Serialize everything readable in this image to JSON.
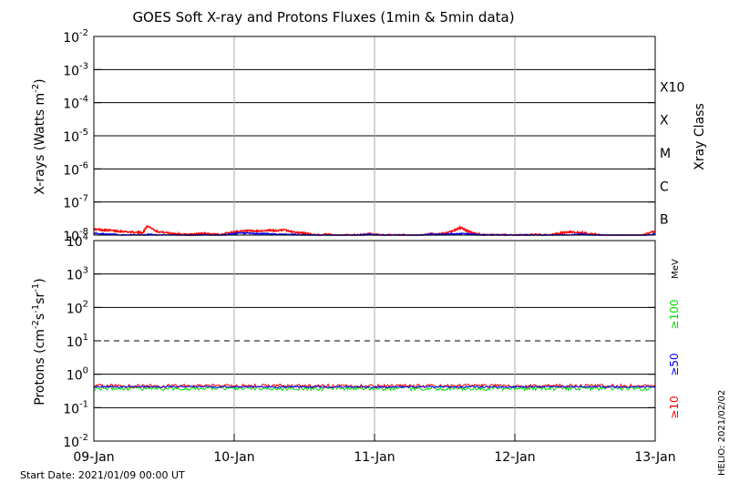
{
  "title": "GOES Soft X-ray and Protons Fluxes   (1min & 5min data)",
  "footer": {
    "start_date": "Start Date: 2021/01/09 00:00 UT",
    "credit": "HELIO: 2021/02/02"
  },
  "colors": {
    "xray_long": "#ff0000",
    "xray_short": "#0000ff",
    "proton_10": "#ff0000",
    "proton_50": "#0000ff",
    "proton_100": "#00dd00",
    "grid_horizontal": "#000000",
    "grid_vertical": "#aaaaaa"
  },
  "chart_data": [
    {
      "type": "line",
      "panel": "xrays",
      "title": "GOES Soft X-ray and Protons Fluxes   (1min & 5min data)",
      "ylabel": "X-rays (Watts m^-2)",
      "y_scale": "log",
      "ylim": [
        1e-08,
        0.01
      ],
      "y_ticks": [
        {
          "value": 1e-08,
          "base": "10",
          "exp": "-8"
        },
        {
          "value": 1e-07,
          "base": "10",
          "exp": "-7"
        },
        {
          "value": 1e-06,
          "base": "10",
          "exp": "-6"
        },
        {
          "value": 1e-05,
          "base": "10",
          "exp": "-5"
        },
        {
          "value": 0.0001,
          "base": "10",
          "exp": "-4"
        },
        {
          "value": 0.001,
          "base": "10",
          "exp": "-3"
        },
        {
          "value": 0.01,
          "base": "10",
          "exp": "-2"
        }
      ],
      "right_axis_title": "Xray Class",
      "class_labels": [
        {
          "label": "B",
          "value": 3e-08
        },
        {
          "label": "C",
          "value": 3e-07
        },
        {
          "label": "M",
          "value": 3e-06
        },
        {
          "label": "X",
          "value": 3e-05
        },
        {
          "label": "X10",
          "value": 0.0003
        }
      ],
      "grid": true,
      "series": [
        {
          "color": "#ff0000",
          "x": [
            0.0,
            0.05,
            0.1,
            0.15,
            0.2,
            0.25,
            0.3,
            0.35,
            0.38,
            0.45,
            0.5,
            0.55,
            0.6,
            0.65,
            0.7,
            0.75,
            0.8,
            0.85,
            0.9,
            0.95,
            1.0,
            1.05,
            1.1,
            1.15,
            1.2,
            1.25,
            1.3,
            1.35,
            1.4,
            1.45,
            1.5,
            1.55,
            1.6,
            1.65,
            1.7,
            1.75,
            1.8,
            1.85,
            1.9,
            1.95,
            2.0,
            2.05,
            2.1,
            2.15,
            2.2,
            2.25,
            2.3,
            2.35,
            2.4,
            2.45,
            2.5,
            2.55,
            2.6,
            2.62,
            2.65,
            2.7,
            2.75,
            2.8,
            2.85,
            2.9,
            2.95,
            3.0,
            3.05,
            3.1,
            3.15,
            3.2,
            3.25,
            3.3,
            3.35,
            3.4,
            3.45,
            3.5,
            3.55,
            3.6,
            3.65,
            3.7,
            3.75,
            3.8,
            3.85,
            3.9,
            3.95,
            4.0
          ],
          "values": [
            1.5e-08,
            1.45e-08,
            1.4e-08,
            1.35e-08,
            1.3e-08,
            1.25e-08,
            1.2e-08,
            1.2e-08,
            1.9e-08,
            1.3e-08,
            1.2e-08,
            1.15e-08,
            1.1e-08,
            1.05e-08,
            1.05e-08,
            1.1e-08,
            1.15e-08,
            1.05e-08,
            1.05e-08,
            1.15e-08,
            1.25e-08,
            1.3e-08,
            1.35e-08,
            1.3e-08,
            1.35e-08,
            1.4e-08,
            1.35e-08,
            1.45e-08,
            1.3e-08,
            1.2e-08,
            1.15e-08,
            1.05e-08,
            1e-08,
            1.05e-08,
            1e-08,
            9.5e-09,
            1e-08,
            1e-08,
            1e-08,
            1.1e-08,
            1.05e-08,
            1e-08,
            1e-08,
            1e-08,
            1e-08,
            9.5e-09,
            9.5e-09,
            1e-08,
            1.1e-08,
            1.05e-08,
            1.15e-08,
            1.3e-08,
            1.6e-08,
            1.65e-08,
            1.4e-08,
            1.15e-08,
            1.05e-08,
            1e-08,
            1e-08,
            1e-08,
            1e-08,
            1e-08,
            1e-08,
            1e-08,
            1.05e-08,
            1e-08,
            1e-08,
            1.1e-08,
            1.2e-08,
            1.25e-08,
            1.2e-08,
            1.15e-08,
            1.1e-08,
            1e-08,
            9.5e-09,
            9.5e-09,
            9.5e-09,
            9.5e-09,
            9.5e-09,
            9.5e-09,
            1.15e-08,
            1.3e-08
          ]
        },
        {
          "color": "#0000ff",
          "x": [
            0.0,
            0.05,
            0.1,
            0.15,
            0.2,
            0.25,
            0.3,
            0.35,
            0.4,
            0.45,
            0.5,
            0.55,
            0.6,
            0.65,
            0.7,
            0.75,
            0.8,
            0.85,
            0.9,
            0.95,
            1.0,
            1.05,
            1.1,
            1.15,
            1.2,
            1.25,
            1.3,
            1.35,
            1.4,
            1.45,
            1.5,
            1.55,
            1.6,
            1.65,
            1.7,
            1.75,
            1.8,
            1.85,
            1.9,
            1.95,
            2.0,
            2.05,
            2.1,
            2.15,
            2.2,
            2.25,
            2.3,
            2.35,
            2.4,
            2.45,
            2.5,
            2.55,
            2.6,
            2.65,
            2.7,
            2.75,
            2.8,
            2.85,
            2.9,
            2.95,
            3.0,
            3.05,
            3.1,
            3.15,
            3.2,
            3.25,
            3.3,
            3.35,
            3.4,
            3.45,
            3.5,
            3.55,
            3.6,
            3.65,
            3.7,
            3.75,
            3.8,
            3.85,
            3.9,
            3.95,
            4.0
          ],
          "values": [
            1.15e-08,
            1.1e-08,
            1.05e-08,
            1.05e-08,
            1e-08,
            1e-08,
            1e-08,
            1e-08,
            1.05e-08,
            1e-08,
            1e-08,
            1e-08,
            9.8e-09,
            9.8e-09,
            9.8e-09,
            1e-08,
            1.02e-08,
            9.8e-09,
            9.8e-09,
            1.05e-08,
            1.1e-08,
            1.15e-08,
            1.15e-08,
            1.1e-08,
            1.1e-08,
            1.1e-08,
            1.05e-08,
            1.05e-08,
            1.05e-08,
            1.02e-08,
            1e-08,
            1e-08,
            9.8e-09,
            9.8e-09,
            9.8e-09,
            9.8e-09,
            9.8e-09,
            1e-08,
            1e-08,
            1.05e-08,
            1e-08,
            1e-08,
            1e-08,
            1e-08,
            1e-08,
            9.8e-09,
            9.8e-09,
            1e-08,
            1.05e-08,
            1.05e-08,
            1.05e-08,
            1.1e-08,
            1.1e-08,
            1.1e-08,
            1.05e-08,
            1e-08,
            1e-08,
            1e-08,
            1e-08,
            1e-08,
            1e-08,
            1e-08,
            1e-08,
            1e-08,
            1e-08,
            1e-08,
            1e-08,
            1e-08,
            1e-08,
            1.05e-08,
            1.05e-08,
            1e-08,
            1e-08,
            9.8e-09,
            9.8e-09,
            9.8e-09,
            9.8e-09,
            9.8e-09,
            9.8e-09,
            1e-08,
            1.1e-08
          ]
        }
      ]
    },
    {
      "type": "line",
      "panel": "protons",
      "ylabel": "Protons (cm^-2 s^-1 sr^-1)",
      "y_scale": "log",
      "ylim": [
        0.01,
        10000.0
      ],
      "y_ticks": [
        {
          "value": 0.01,
          "base": "10",
          "exp": "-2"
        },
        {
          "value": 0.1,
          "base": "10",
          "exp": "-1"
        },
        {
          "value": 1.0,
          "base": "10",
          "exp": "0"
        },
        {
          "value": 10.0,
          "base": "10",
          "exp": "1"
        },
        {
          "value": 100.0,
          "base": "10",
          "exp": "2"
        },
        {
          "value": 1000.0,
          "base": "10",
          "exp": "3"
        },
        {
          "value": 10000.0,
          "base": "10",
          "exp": "4"
        }
      ],
      "threshold_line": {
        "value": 10,
        "style": "dashed"
      },
      "right_axis_unit": "MeV",
      "grid": true,
      "x_ticks": [
        "09-Jan",
        "10-Jan",
        "11-Jan",
        "12-Jan",
        "13-Jan"
      ],
      "xlim": [
        "2021-01-09 00:00",
        "2021-01-13 00:00"
      ],
      "series": [
        {
          "name": "≥10",
          "color": "#ff0000",
          "level": 0.45,
          "noise": 0.12
        },
        {
          "name": "≥50",
          "color": "#0000ff",
          "level": 0.42,
          "noise": 0.06
        },
        {
          "name": "≥100",
          "color": "#00dd00",
          "level": 0.38,
          "noise": 0.14
        }
      ]
    }
  ]
}
